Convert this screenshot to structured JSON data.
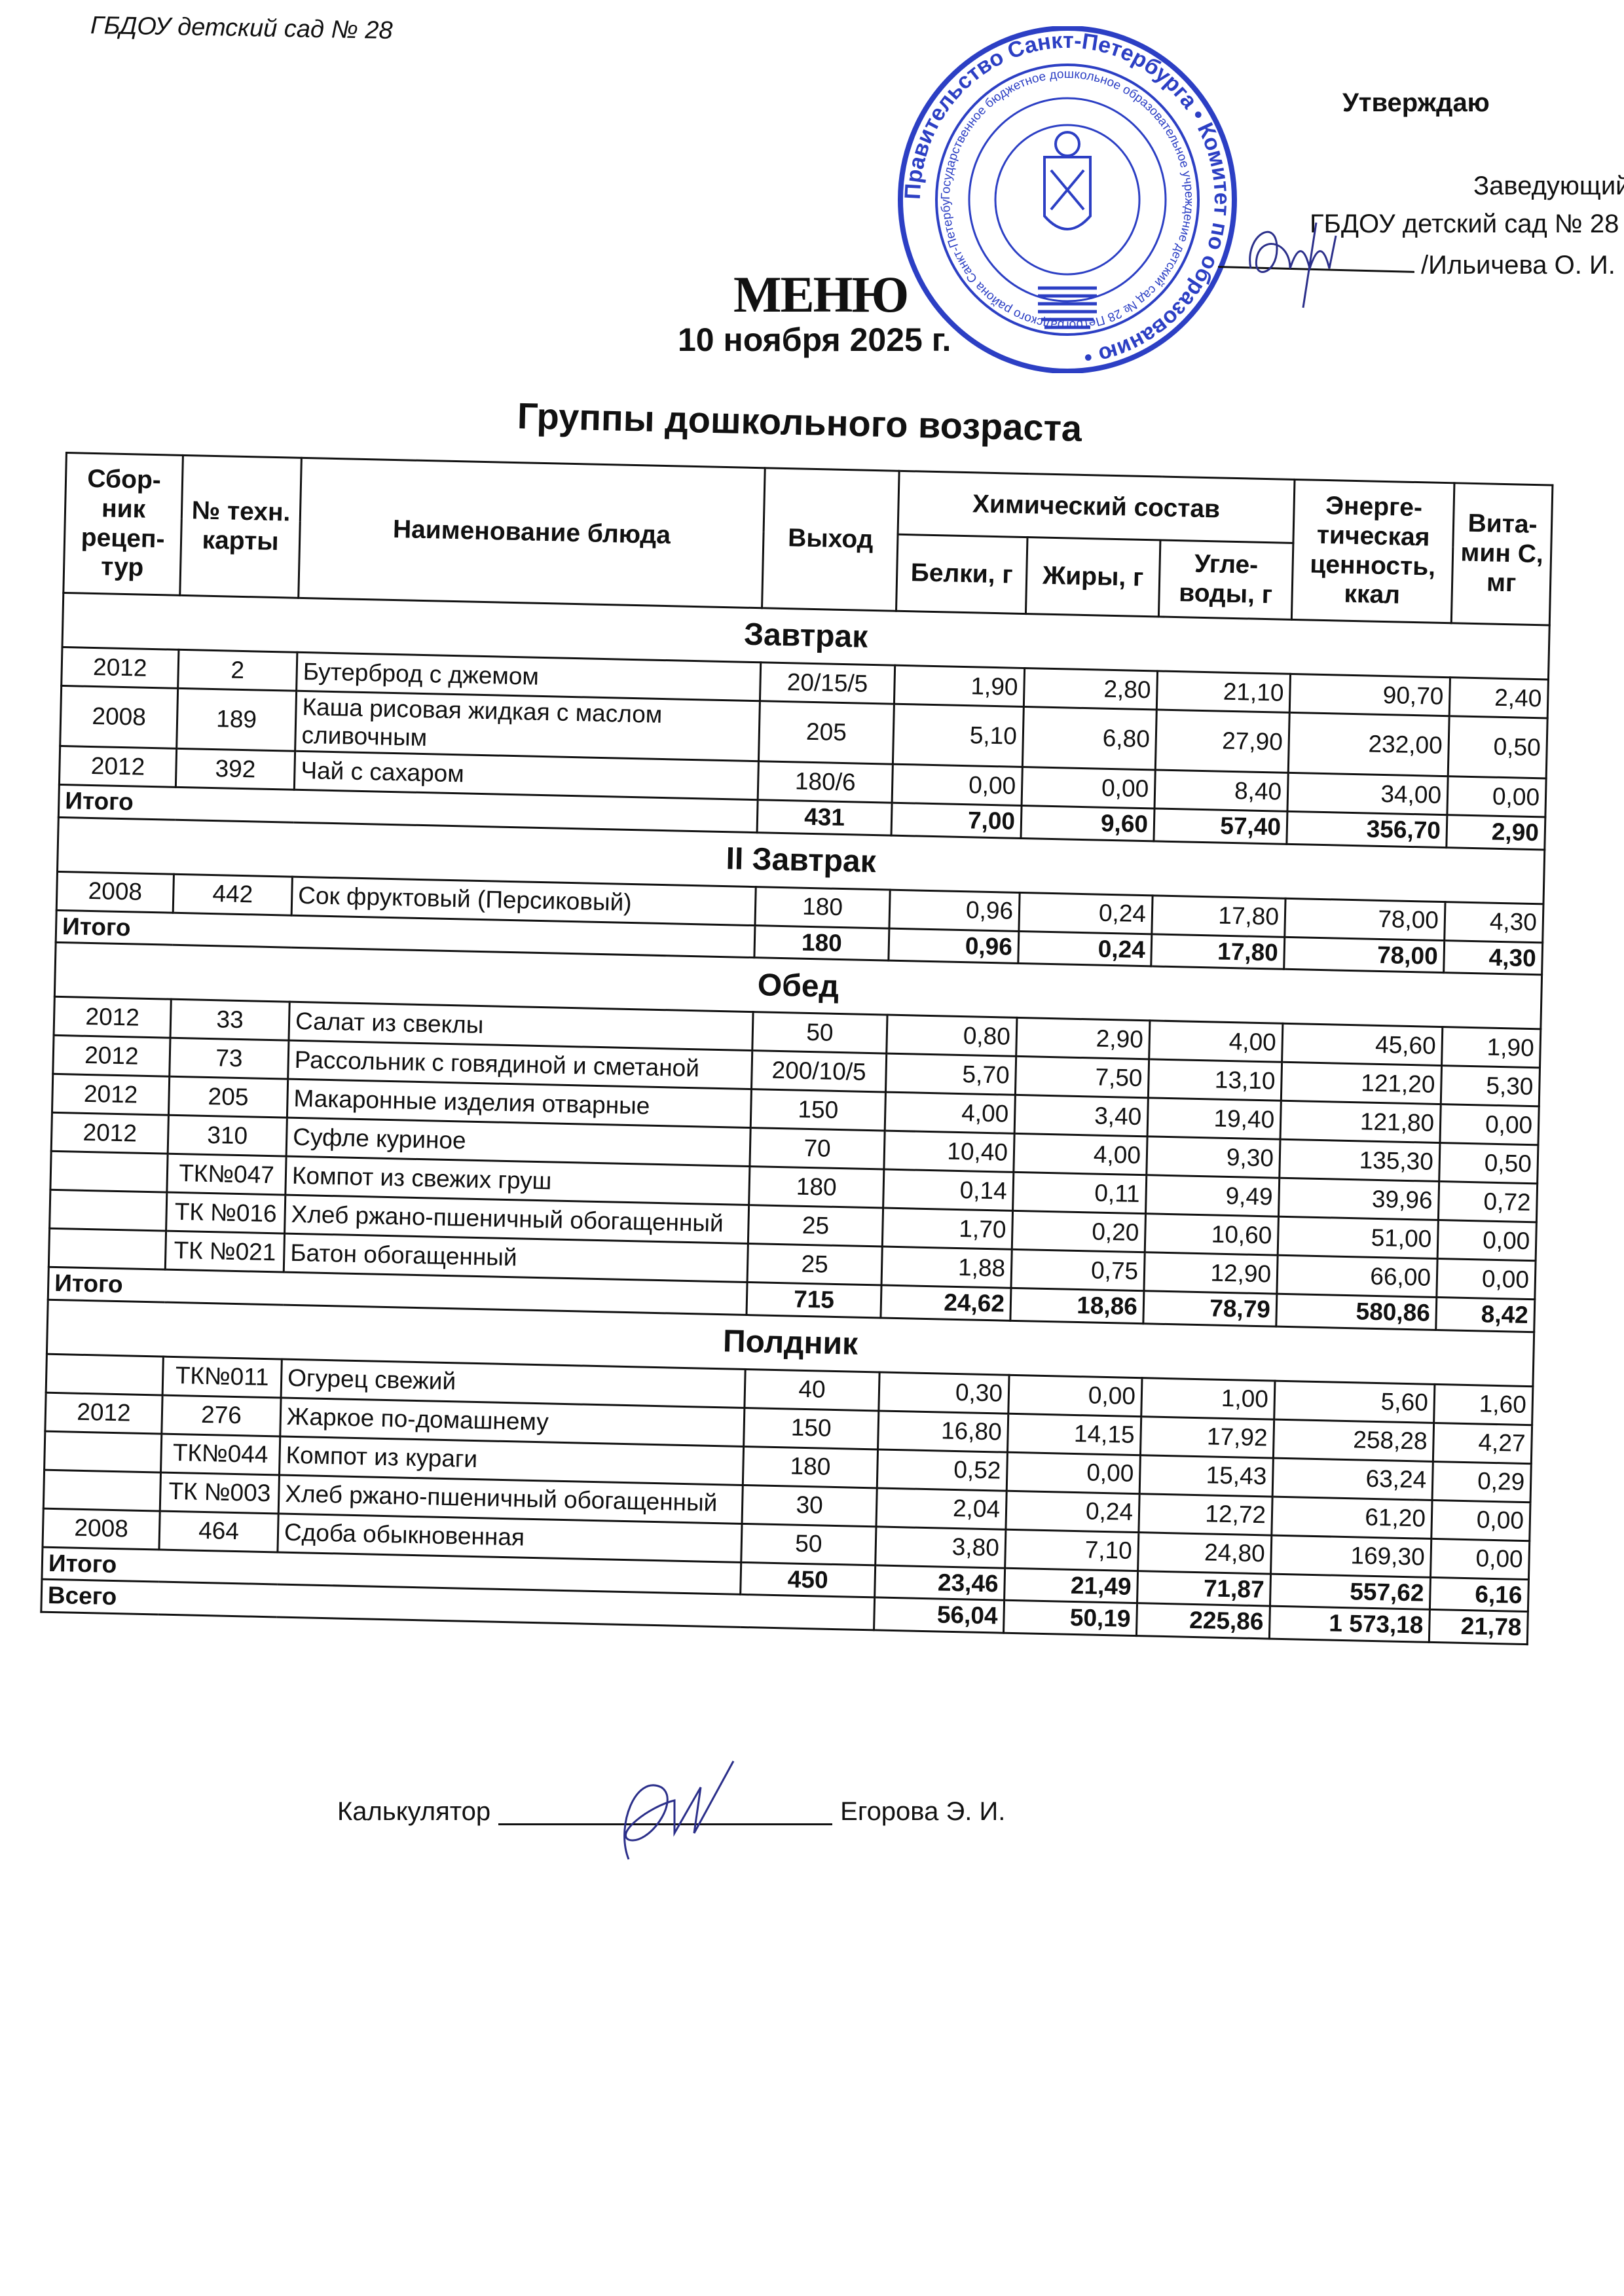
{
  "header": {
    "organization": "ГБДОУ детский сад № 28",
    "approve_label": "Утверждаю",
    "approver_title": "Заведующий",
    "approver_org": "ГБДОУ детский сад № 28",
    "approver_name": "/Ильичева О. И."
  },
  "stamp": {
    "outer_text": "Правительство Санкт-Петербурга • Комитет по образованию •",
    "middle_text": "Государственное бюджетное дошкольное образовательное учреждение детский сад № 28 Петроградского района Санкт-Петербурга",
    "color": "#2c3fc4"
  },
  "title": "МЕНЮ",
  "date": "10 ноября 2025 г.",
  "group": "Группы дошкольного возраста",
  "columns": {
    "collection": "Сбор-ник рецеп-тур",
    "card": "№ техн. карты",
    "dish": "Наименование блюда",
    "output": "Выход",
    "chem": "Химический состав",
    "protein": "Белки, г",
    "fat": "Жиры, г",
    "carbs": "Угле-воды, г",
    "energy": "Энерге-тическая ценность, ккал",
    "vitc": "Вита-мин С, мг"
  },
  "sections": [
    {
      "title": "Завтрак",
      "items": [
        {
          "col": "2012",
          "card": "2",
          "dish": "Бутерброд с джемом",
          "out": "20/15/5",
          "p": "1,90",
          "f": "2,80",
          "c": "21,10",
          "e": "90,70",
          "v": "2,40"
        },
        {
          "col": "2008",
          "card": "189",
          "dish": "Каша рисовая жидкая с маслом сливочным",
          "out": "205",
          "p": "5,10",
          "f": "6,80",
          "c": "27,90",
          "e": "232,00",
          "v": "0,50"
        },
        {
          "col": "2012",
          "card": "392",
          "dish": "Чай с сахаром",
          "out": "180/6",
          "p": "0,00",
          "f": "0,00",
          "c": "8,40",
          "e": "34,00",
          "v": "0,00"
        }
      ],
      "total": {
        "label": "Итого",
        "out": "431",
        "p": "7,00",
        "f": "9,60",
        "c": "57,40",
        "e": "356,70",
        "v": "2,90"
      }
    },
    {
      "title": "II Завтрак",
      "items": [
        {
          "col": "2008",
          "card": "442",
          "dish": "Сок фруктовый (Персиковый)",
          "out": "180",
          "p": "0,96",
          "f": "0,24",
          "c": "17,80",
          "e": "78,00",
          "v": "4,30"
        }
      ],
      "total": {
        "label": "Итого",
        "out": "180",
        "p": "0,96",
        "f": "0,24",
        "c": "17,80",
        "e": "78,00",
        "v": "4,30"
      }
    },
    {
      "title": "Обед",
      "items": [
        {
          "col": "2012",
          "card": "33",
          "dish": "Салат из свеклы",
          "out": "50",
          "p": "0,80",
          "f": "2,90",
          "c": "4,00",
          "e": "45,60",
          "v": "1,90"
        },
        {
          "col": "2012",
          "card": "73",
          "dish": "Рассольник с говядиной и сметаной",
          "out": "200/10/5",
          "p": "5,70",
          "f": "7,50",
          "c": "13,10",
          "e": "121,20",
          "v": "5,30"
        },
        {
          "col": "2012",
          "card": "205",
          "dish": "Макаронные изделия отварные",
          "out": "150",
          "p": "4,00",
          "f": "3,40",
          "c": "19,40",
          "e": "121,80",
          "v": "0,00"
        },
        {
          "col": "2012",
          "card": "310",
          "dish": "Суфле куриное",
          "out": "70",
          "p": "10,40",
          "f": "4,00",
          "c": "9,30",
          "e": "135,30",
          "v": "0,50"
        },
        {
          "col": "",
          "card": "ТК№047",
          "dish": "Компот из свежих груш",
          "out": "180",
          "p": "0,14",
          "f": "0,11",
          "c": "9,49",
          "e": "39,96",
          "v": "0,72"
        },
        {
          "col": "",
          "card": "ТК №016",
          "dish": "Хлеб ржано-пшеничный обогащенный",
          "out": "25",
          "p": "1,70",
          "f": "0,20",
          "c": "10,60",
          "e": "51,00",
          "v": "0,00"
        },
        {
          "col": "",
          "card": "ТК №021",
          "dish": "Батон обогащенный",
          "out": "25",
          "p": "1,88",
          "f": "0,75",
          "c": "12,90",
          "e": "66,00",
          "v": "0,00"
        }
      ],
      "total": {
        "label": "Итого",
        "out": "715",
        "p": "24,62",
        "f": "18,86",
        "c": "78,79",
        "e": "580,86",
        "v": "8,42"
      }
    },
    {
      "title": "Полдник",
      "items": [
        {
          "col": "",
          "card": "ТК№011",
          "dish": "Огурец свежий",
          "out": "40",
          "p": "0,30",
          "f": "0,00",
          "c": "1,00",
          "e": "5,60",
          "v": "1,60"
        },
        {
          "col": "2012",
          "card": "276",
          "dish": "Жаркое по-домашнему",
          "out": "150",
          "p": "16,80",
          "f": "14,15",
          "c": "17,92",
          "e": "258,28",
          "v": "4,27"
        },
        {
          "col": "",
          "card": "ТК№044",
          "dish": "Компот из кураги",
          "out": "180",
          "p": "0,52",
          "f": "0,00",
          "c": "15,43",
          "e": "63,24",
          "v": "0,29"
        },
        {
          "col": "",
          "card": "ТК №003",
          "dish": "Хлеб ржано-пшеничный обогащенный",
          "out": "30",
          "p": "2,04",
          "f": "0,24",
          "c": "12,72",
          "e": "61,20",
          "v": "0,00"
        },
        {
          "col": "2008",
          "card": "464",
          "dish": "Сдоба обыкновенная",
          "out": "50",
          "p": "3,80",
          "f": "7,10",
          "c": "24,80",
          "e": "169,30",
          "v": "0,00"
        }
      ],
      "total": {
        "label": "Итого",
        "out": "450",
        "p": "23,46",
        "f": "21,49",
        "c": "71,87",
        "e": "557,62",
        "v": "6,16"
      }
    }
  ],
  "grand_total": {
    "label": "Всего",
    "p": "56,04",
    "f": "50,19",
    "c": "225,86",
    "e": "1 573,18",
    "v": "21,78"
  },
  "footer": {
    "role": "Калькулятор",
    "name": "Егорова Э. И."
  }
}
